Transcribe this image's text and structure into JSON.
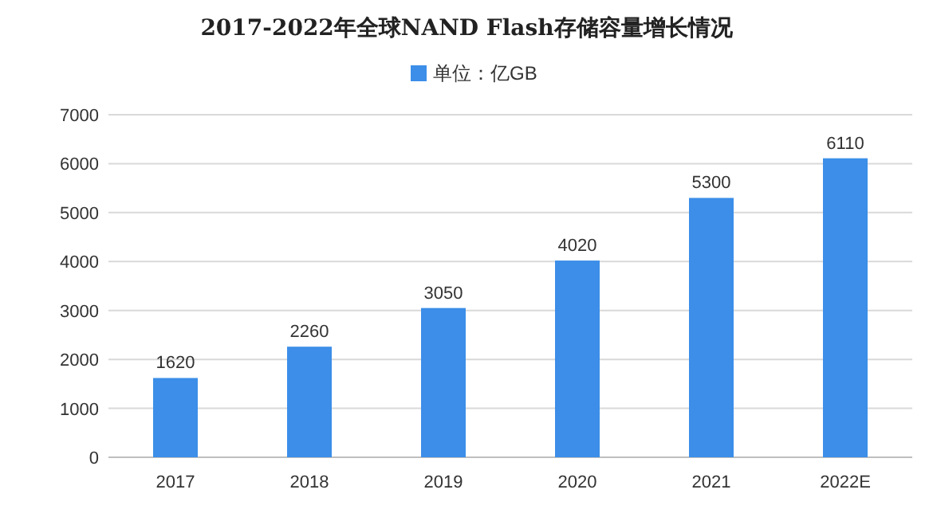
{
  "chart_data": {
    "type": "bar",
    "title": "2017-2022年全球NAND Flash存储容量增长情况",
    "categories": [
      "2017",
      "2018",
      "2019",
      "2020",
      "2021",
      "2022E"
    ],
    "series": [
      {
        "name": "单位：亿GB",
        "color": "#3c8ee8",
        "values": [
          1620,
          2260,
          3050,
          4020,
          5300,
          6110
        ]
      }
    ],
    "ylim": [
      0,
      7000
    ],
    "yticks": [
      0,
      1000,
      2000,
      3000,
      4000,
      5000,
      6000,
      7000
    ],
    "grid": "y",
    "legend": "top",
    "data_labels": true
  }
}
